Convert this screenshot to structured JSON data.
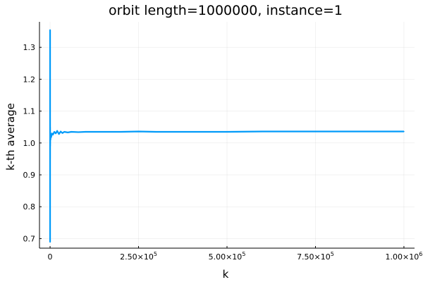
{
  "chart_data": {
    "type": "line",
    "title": "orbit length=1000000, instance=1",
    "xlabel": "k",
    "ylabel": "k-th average",
    "xlim": [
      -30000,
      1030000
    ],
    "ylim": [
      0.67,
      1.38
    ],
    "grid": true,
    "legend": "none",
    "x_ticks": [
      {
        "value": 0,
        "mantissa": "0",
        "exponent": ""
      },
      {
        "value": 250000,
        "mantissa": "2.50×10",
        "exponent": "5"
      },
      {
        "value": 500000,
        "mantissa": "5.00×10",
        "exponent": "5"
      },
      {
        "value": 750000,
        "mantissa": "7.50×10",
        "exponent": "5"
      },
      {
        "value": 1000000,
        "mantissa": "1.00×10",
        "exponent": "6"
      }
    ],
    "y_ticks": [
      {
        "value": 0.7,
        "label": "0.7"
      },
      {
        "value": 0.8,
        "label": "0.8"
      },
      {
        "value": 0.9,
        "label": "0.9"
      },
      {
        "value": 1.0,
        "label": "1.0"
      },
      {
        "value": 1.1,
        "label": "1.1"
      },
      {
        "value": 1.2,
        "label": "1.2"
      },
      {
        "value": 1.3,
        "label": "1.3"
      }
    ],
    "series": [
      {
        "color": "#009af9",
        "x": [
          1,
          2,
          3,
          5,
          8,
          15,
          30,
          60,
          120,
          250,
          500,
          1000,
          2000,
          3000,
          5000,
          8000,
          12000,
          16000,
          20000,
          25000,
          30000,
          35000,
          40000,
          50000,
          60000,
          80000,
          100000,
          150000,
          200000,
          250000,
          300000,
          350000,
          400000,
          500000,
          600000,
          700000,
          800000,
          900000,
          1000000
        ],
        "y": [
          1.355,
          0.69,
          1.25,
          0.78,
          1.15,
          0.86,
          1.08,
          0.95,
          1.05,
          0.99,
          1.02,
          1.01,
          1.025,
          1.018,
          1.03,
          1.026,
          1.035,
          1.03,
          1.038,
          1.028,
          1.036,
          1.031,
          1.035,
          1.033,
          1.035,
          1.034,
          1.035,
          1.035,
          1.035,
          1.036,
          1.035,
          1.035,
          1.035,
          1.035,
          1.036,
          1.036,
          1.036,
          1.036,
          1.036
        ]
      }
    ]
  }
}
